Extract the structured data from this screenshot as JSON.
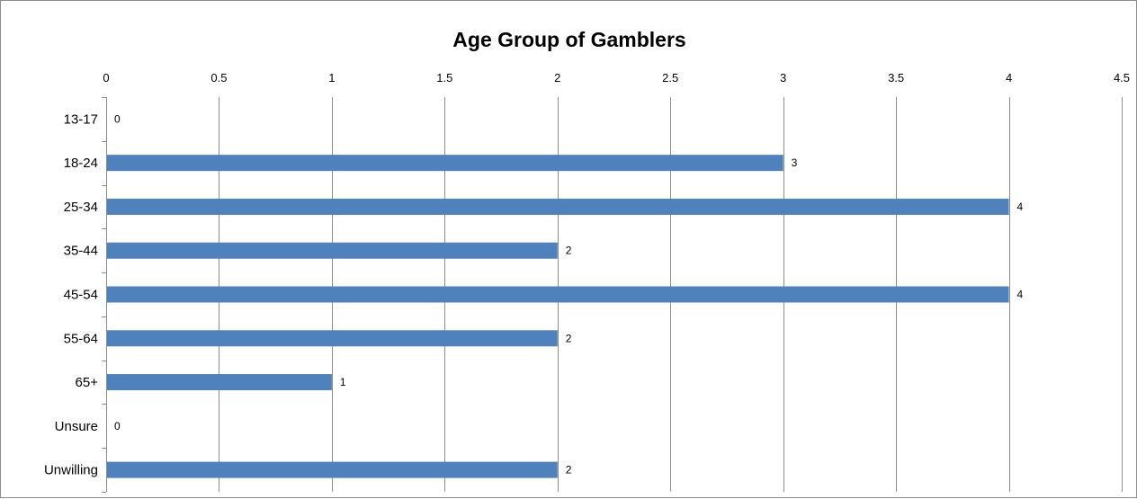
{
  "chart_data": {
    "type": "bar",
    "orientation": "horizontal",
    "title": "Age Group of Gamblers",
    "xlabel": "",
    "ylabel": "",
    "categories": [
      "13-17",
      "18-24",
      "25-34",
      "35-44",
      "45-54",
      "55-64",
      "65+",
      "Unsure",
      "Unwilling"
    ],
    "values": [
      0,
      3,
      4,
      2,
      4,
      2,
      1,
      0,
      2
    ],
    "value_axis_ticks": [
      "0",
      "0.5",
      "1",
      "1.5",
      "2",
      "2.5",
      "3",
      "3.5",
      "4",
      "4.5"
    ],
    "xlim": [
      0,
      4.5
    ],
    "value_axis_position": "top",
    "grid": true,
    "legend": "none",
    "data_labels": true,
    "bar_color": "#4F81BD",
    "grid_color": "#8C8C8C"
  }
}
